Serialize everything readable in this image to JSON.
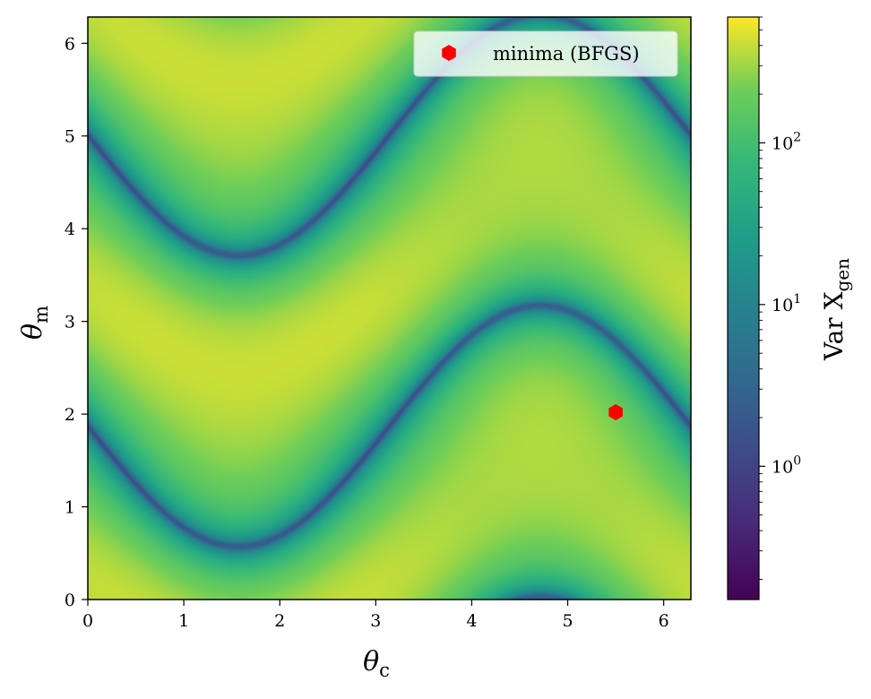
{
  "chart_data": {
    "type": "heatmap",
    "title": "",
    "xlabel": "θ",
    "xlabel_sub": "c",
    "ylabel": "θ",
    "ylabel_sub": "m",
    "xlim": [
      0,
      6.2832
    ],
    "ylim": [
      0,
      6.2832
    ],
    "x_ticks": [
      0,
      1,
      2,
      3,
      4,
      5,
      6
    ],
    "y_ticks": [
      0,
      1,
      2,
      3,
      4,
      5,
      6
    ],
    "colorbar": {
      "label": "Var X",
      "label_sub": "gen",
      "scale": "log",
      "colormap": "viridis",
      "range": [
        0.15,
        600
      ],
      "ticks": [
        {
          "value": 1,
          "base": "10",
          "exp": "0"
        },
        {
          "value": 10,
          "base": "10",
          "exp": "1"
        },
        {
          "value": 100,
          "base": "10",
          "exp": "2"
        }
      ]
    },
    "minimum_valleys_at_theta_m_for_theta_c_0": [
      1.87,
      5.01
    ],
    "markers": [
      {
        "name": "minima (BFGS)",
        "x": 5.5,
        "y": 2.02,
        "color": "#ff0000",
        "shape": "hexagon"
      }
    ],
    "legend": {
      "position": "top-right",
      "entries": [
        "minima (BFGS)"
      ]
    },
    "grid": false
  }
}
